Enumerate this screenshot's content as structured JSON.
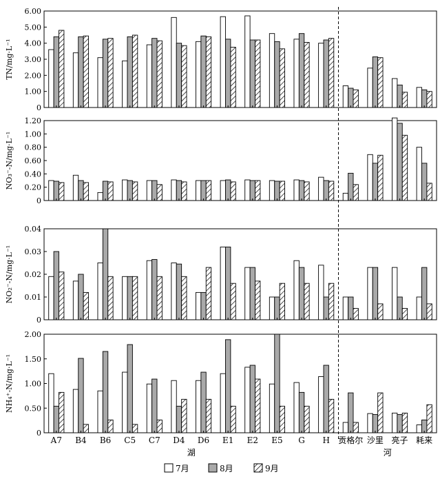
{
  "chart_data": [
    {
      "type": "bar",
      "ylabel": "TN/mg·L⁻¹",
      "ylim": [
        0,
        6
      ],
      "yticks": [
        "0",
        "1.00",
        "2.00",
        "3.00",
        "4.00",
        "5.00",
        "6.00"
      ],
      "yvalues": [
        0,
        1,
        2,
        3,
        4,
        5,
        6
      ],
      "series": [
        {
          "name": "7月",
          "values": [
            3.6,
            3.4,
            3.1,
            2.9,
            3.9,
            5.6,
            4.1,
            5.65,
            5.7,
            4.6,
            4.25,
            4.0,
            1.35,
            2.45,
            1.8,
            1.25
          ]
        },
        {
          "name": "8月",
          "values": [
            4.4,
            4.4,
            4.25,
            4.4,
            4.3,
            4.0,
            4.45,
            4.25,
            4.2,
            4.1,
            4.6,
            4.2,
            1.2,
            3.15,
            1.4,
            1.1
          ]
        },
        {
          "name": "9月",
          "values": [
            4.8,
            4.45,
            4.3,
            4.5,
            4.15,
            3.85,
            4.4,
            3.75,
            4.2,
            3.65,
            4.05,
            4.3,
            1.1,
            3.1,
            0.95,
            1.0
          ]
        }
      ]
    },
    {
      "type": "bar",
      "ylabel": "NO₃⁻-N/mg·L⁻¹",
      "ylim": [
        0,
        1.2
      ],
      "yticks": [
        "0",
        "0.20",
        "0.40",
        "0.60",
        "0.80",
        "1.00",
        "1.20"
      ],
      "yvalues": [
        0,
        0.2,
        0.4,
        0.6,
        0.8,
        1.0,
        1.2
      ],
      "series": [
        {
          "name": "7月",
          "values": [
            0.3,
            0.38,
            0.12,
            0.31,
            0.3,
            0.31,
            0.3,
            0.3,
            0.31,
            0.3,
            0.31,
            0.35,
            0.11,
            0.69,
            1.24,
            0.8
          ]
        },
        {
          "name": "8月",
          "values": [
            0.29,
            0.3,
            0.29,
            0.3,
            0.3,
            0.3,
            0.3,
            0.31,
            0.3,
            0.29,
            0.3,
            0.3,
            0.41,
            0.56,
            1.16,
            0.56
          ]
        },
        {
          "name": "9月",
          "values": [
            0.27,
            0.27,
            0.28,
            0.28,
            0.24,
            0.28,
            0.3,
            0.28,
            0.3,
            0.29,
            0.28,
            0.29,
            0.24,
            0.68,
            0.98,
            0.26
          ]
        }
      ]
    },
    {
      "type": "bar",
      "ylabel": "NO₂⁻-N/mg·L⁻¹",
      "ylim": [
        0,
        0.04
      ],
      "yticks": [
        "0",
        "0.01",
        "0.02",
        "0.03",
        "0.04"
      ],
      "yvalues": [
        0,
        0.01,
        0.02,
        0.03,
        0.04
      ],
      "series": [
        {
          "name": "7月",
          "values": [
            0.019,
            0.017,
            0.025,
            0.019,
            0.026,
            0.025,
            0.012,
            0.032,
            0.023,
            0.01,
            0.026,
            0.024,
            0.01,
            0.023,
            0.023,
            0.01
          ]
        },
        {
          "name": "8月",
          "values": [
            0.03,
            0.02,
            0.04,
            0.019,
            0.0265,
            0.0245,
            0.012,
            0.032,
            0.023,
            0.01,
            0.023,
            0.01,
            0.01,
            0.023,
            0.01,
            0.023
          ]
        },
        {
          "name": "9月",
          "values": [
            0.021,
            0.012,
            0.019,
            0.019,
            0.019,
            0.019,
            0.023,
            0.016,
            0.017,
            0.016,
            0.016,
            0.016,
            0.005,
            0.007,
            0.005,
            0.007
          ]
        }
      ]
    },
    {
      "type": "bar",
      "ylabel": "NH₄⁺-N/mg·L⁻¹",
      "ylim": [
        0,
        2
      ],
      "yticks": [
        "0",
        "0.50",
        "1.00",
        "1.50",
        "2.00"
      ],
      "yvalues": [
        0,
        0.5,
        1.0,
        1.5,
        2.0
      ],
      "series": [
        {
          "name": "7月",
          "values": [
            1.2,
            0.88,
            0.85,
            1.23,
            0.99,
            1.06,
            1.06,
            1.2,
            1.33,
            0.99,
            1.02,
            1.14,
            0.21,
            0.39,
            0.4,
            0.16
          ]
        },
        {
          "name": "8月",
          "values": [
            0.54,
            1.51,
            1.65,
            1.79,
            1.09,
            0.54,
            1.23,
            1.89,
            1.37,
            2.0,
            0.82,
            1.37,
            0.81,
            0.37,
            0.37,
            0.26
          ]
        },
        {
          "name": "9月",
          "values": [
            0.82,
            0.17,
            0.26,
            0.17,
            0.26,
            0.68,
            0.68,
            0.54,
            1.09,
            0.54,
            0.54,
            0.68,
            0.21,
            0.81,
            0.4,
            0.57
          ]
        }
      ]
    }
  ],
  "categories": [
    "A7",
    "B4",
    "B6",
    "C5",
    "C7",
    "D4",
    "D6",
    "E1",
    "E2",
    "E5",
    "G",
    "H",
    "贡格尔",
    "沙里",
    "亮子",
    "耗来"
  ],
  "group_labels": {
    "lake": "湖",
    "river": "河"
  },
  "legend": [
    {
      "name": "7月",
      "style": "open"
    },
    {
      "name": "8月",
      "style": "gray"
    },
    {
      "name": "9月",
      "style": "hatched"
    }
  ],
  "colors": {
    "open": "#ffffff",
    "gray": "#a9a9a9",
    "hatch": "#000000",
    "axis": "#000000"
  }
}
